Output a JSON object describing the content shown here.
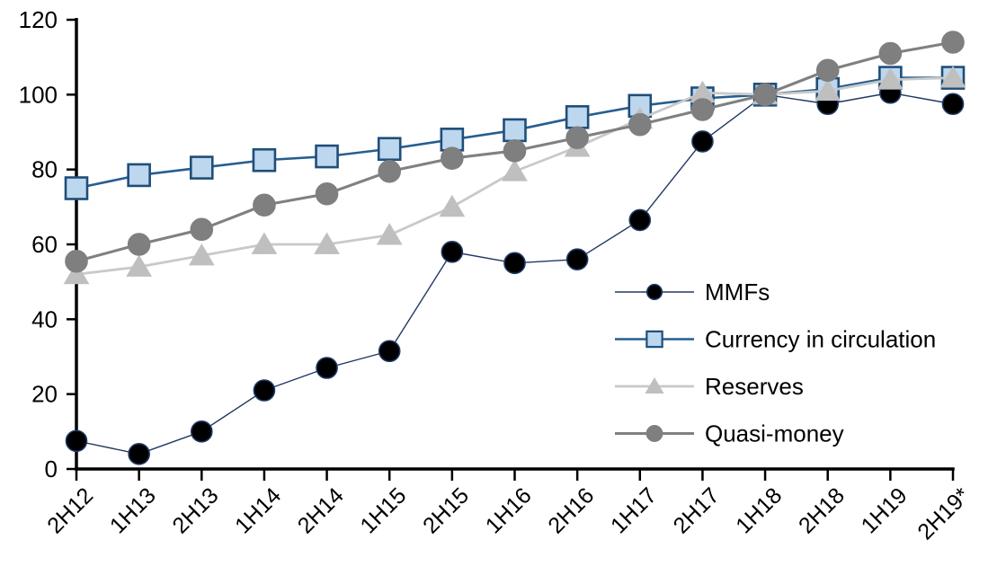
{
  "chart_data": {
    "type": "line",
    "title": "",
    "xlabel": "",
    "ylabel": "",
    "ylim": [
      0,
      120
    ],
    "yticks": [
      0,
      20,
      40,
      60,
      80,
      100,
      120
    ],
    "grid": false,
    "legend_position": "inside-right",
    "axis_color": "#000000",
    "categories": [
      "2H12",
      "1H13",
      "2H13",
      "1H14",
      "2H14",
      "1H15",
      "2H15",
      "1H16",
      "2H16",
      "1H17",
      "2H17",
      "1H18",
      "2H18",
      "1H19",
      "2H19*"
    ],
    "series": [
      {
        "name": "MMFs",
        "marker": "circle",
        "marker_fill": "#000000",
        "marker_stroke": "#1F3864",
        "line_color": "#203864",
        "line_width": 1.4,
        "marker_size": 11.5,
        "values": [
          7.5,
          4,
          10,
          21,
          27,
          31.5,
          58,
          55,
          56,
          66.5,
          87.5,
          100,
          97.5,
          100.5,
          97.5
        ]
      },
      {
        "name": "Currency in circulation",
        "marker": "square",
        "marker_fill": "#BDD7EE",
        "marker_stroke": "#1F4E79",
        "line_color": "#255E91",
        "line_width": 2.6,
        "marker_size": 12,
        "values": [
          75,
          78.5,
          80.5,
          82.5,
          83.5,
          85.5,
          88,
          90.5,
          94,
          97,
          99,
          100,
          101.5,
          104.5,
          104.5
        ]
      },
      {
        "name": "Reserves",
        "marker": "triangle",
        "marker_fill": "#BFBFBF",
        "marker_stroke": "#BFBFBF",
        "line_color": "#C9C9C9",
        "line_width": 2.8,
        "marker_size": 12.5,
        "values": [
          52,
          54,
          57,
          60,
          60,
          62.5,
          70,
          79.5,
          86,
          93.5,
          100.5,
          100,
          101,
          104,
          104.5
        ]
      },
      {
        "name": "Quasi-money",
        "marker": "circle",
        "marker_fill": "#7F7F7F",
        "marker_stroke": "#7F7F7F",
        "line_color": "#808080",
        "line_width": 3.1,
        "marker_size": 12,
        "values": [
          55.5,
          60,
          64,
          70.5,
          73.5,
          79.5,
          83,
          85,
          88.5,
          92,
          96,
          100,
          106.5,
          111,
          114
        ]
      }
    ]
  }
}
